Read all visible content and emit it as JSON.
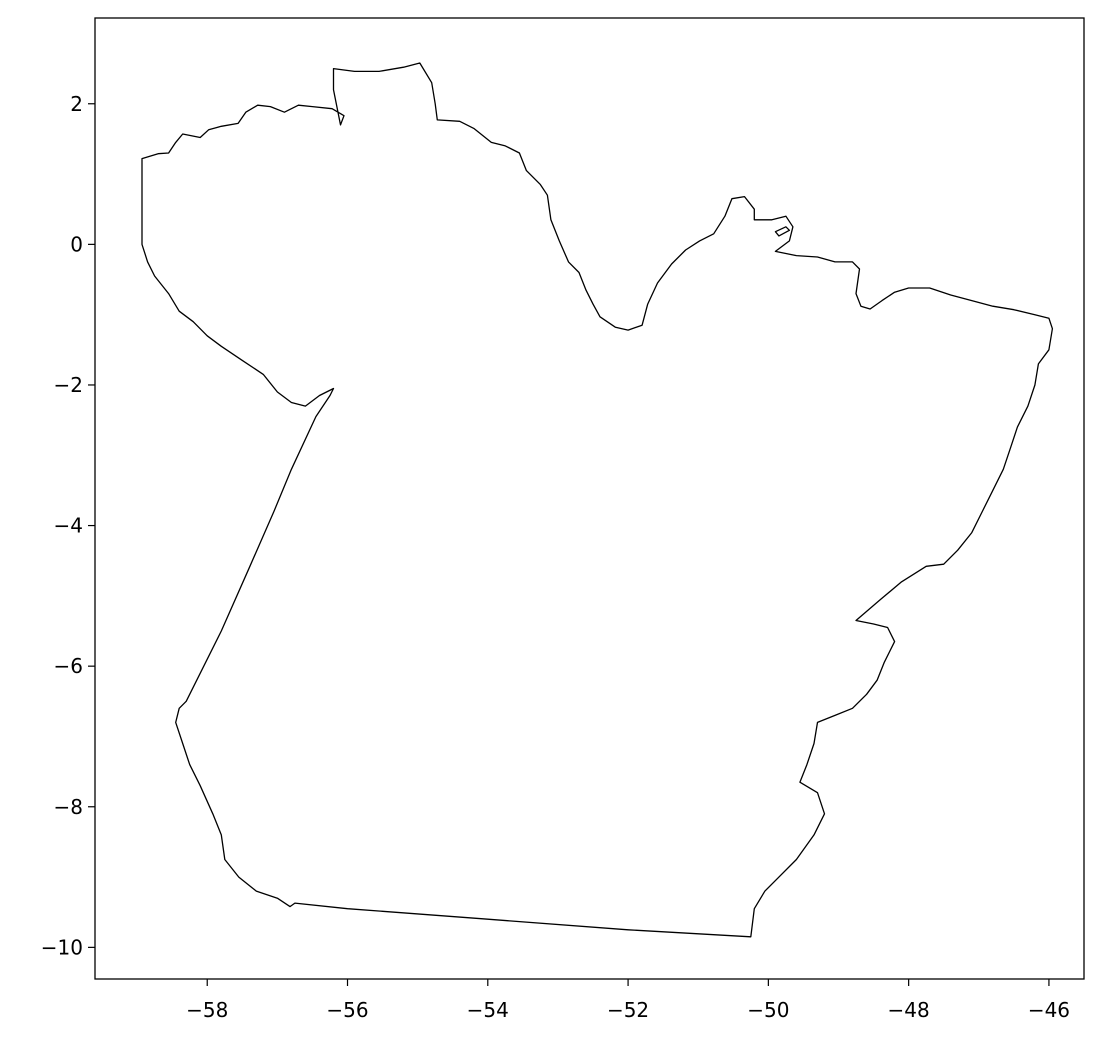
{
  "chart_data": {
    "type": "map",
    "title": "",
    "xlabel": "",
    "ylabel": "",
    "xlim": [
      -59.6,
      -45.5
    ],
    "ylim": [
      -10.45,
      3.22
    ],
    "x_ticks": [
      -58,
      -56,
      -54,
      -52,
      -50,
      -48,
      -46
    ],
    "y_ticks": [
      2,
      0,
      -2,
      -4,
      -6,
      -8,
      -10
    ],
    "grid": false,
    "colors": {
      "outline": "#000000",
      "fill": "#ffffff",
      "background": "#ffffff"
    },
    "outline_coords": [
      [
        -58.93,
        1.22
      ],
      [
        -58.7,
        1.29
      ],
      [
        -58.55,
        1.3
      ],
      [
        -58.45,
        1.45
      ],
      [
        -58.35,
        1.57
      ],
      [
        -58.1,
        1.52
      ],
      [
        -57.98,
        1.63
      ],
      [
        -57.8,
        1.68
      ],
      [
        -57.56,
        1.72
      ],
      [
        -57.45,
        1.88
      ],
      [
        -57.28,
        1.98
      ],
      [
        -57.1,
        1.96
      ],
      [
        -56.9,
        1.88
      ],
      [
        -56.7,
        1.98
      ],
      [
        -56.5,
        1.96
      ],
      [
        -56.22,
        1.93
      ],
      [
        -56.05,
        1.83
      ],
      [
        -56.1,
        1.7
      ],
      [
        -56.2,
        2.2
      ],
      [
        -56.2,
        2.5
      ],
      [
        -55.9,
        2.46
      ],
      [
        -55.55,
        2.46
      ],
      [
        -55.2,
        2.52
      ],
      [
        -54.97,
        2.58
      ],
      [
        -54.8,
        2.3
      ],
      [
        -54.75,
        2.0
      ],
      [
        -54.72,
        1.77
      ],
      [
        -54.4,
        1.75
      ],
      [
        -54.2,
        1.65
      ],
      [
        -53.95,
        1.45
      ],
      [
        -53.75,
        1.4
      ],
      [
        -53.55,
        1.3
      ],
      [
        -53.45,
        1.05
      ],
      [
        -53.25,
        0.85
      ],
      [
        -53.15,
        0.7
      ],
      [
        -53.1,
        0.35
      ],
      [
        -52.98,
        0.05
      ],
      [
        -52.85,
        -0.25
      ],
      [
        -52.7,
        -0.4
      ],
      [
        -52.6,
        -0.65
      ],
      [
        -52.5,
        -0.85
      ],
      [
        -52.4,
        -1.03
      ],
      [
        -52.18,
        -1.18
      ],
      [
        -52.0,
        -1.22
      ],
      [
        -51.8,
        -1.15
      ],
      [
        -51.72,
        -0.85
      ],
      [
        -51.58,
        -0.55
      ],
      [
        -51.38,
        -0.28
      ],
      [
        -51.18,
        -0.08
      ],
      [
        -50.98,
        0.05
      ],
      [
        -50.78,
        0.15
      ],
      [
        -50.62,
        0.4
      ],
      [
        -50.52,
        0.65
      ],
      [
        -50.34,
        0.68
      ],
      [
        -50.2,
        0.5
      ],
      [
        -50.2,
        0.35
      ],
      [
        -49.95,
        0.35
      ],
      [
        -49.75,
        0.4
      ],
      [
        -49.65,
        0.25
      ],
      [
        -49.7,
        0.05
      ],
      [
        -49.9,
        -0.1
      ],
      [
        -49.6,
        -0.16
      ],
      [
        -49.3,
        -0.18
      ],
      [
        -49.05,
        -0.25
      ],
      [
        -48.8,
        -0.25
      ],
      [
        -48.7,
        -0.35
      ],
      [
        -48.75,
        -0.7
      ],
      [
        -48.68,
        -0.88
      ],
      [
        -48.55,
        -0.92
      ],
      [
        -48.38,
        -0.8
      ],
      [
        -48.2,
        -0.68
      ],
      [
        -48.0,
        -0.62
      ],
      [
        -47.7,
        -0.62
      ],
      [
        -47.4,
        -0.72
      ],
      [
        -47.1,
        -0.8
      ],
      [
        -46.8,
        -0.88
      ],
      [
        -46.5,
        -0.93
      ],
      [
        -46.2,
        -1.0
      ],
      [
        -46.0,
        -1.05
      ],
      [
        -45.95,
        -1.2
      ],
      [
        -46.0,
        -1.5
      ],
      [
        -46.15,
        -1.7
      ],
      [
        -46.2,
        -2.0
      ],
      [
        -46.3,
        -2.3
      ],
      [
        -46.45,
        -2.6
      ],
      [
        -46.55,
        -2.9
      ],
      [
        -46.65,
        -3.2
      ],
      [
        -46.8,
        -3.5
      ],
      [
        -46.95,
        -3.8
      ],
      [
        -47.1,
        -4.1
      ],
      [
        -47.3,
        -4.35
      ],
      [
        -47.5,
        -4.55
      ],
      [
        -47.75,
        -4.58
      ],
      [
        -48.1,
        -4.8
      ],
      [
        -48.4,
        -5.05
      ],
      [
        -48.75,
        -5.35
      ],
      [
        -48.5,
        -5.4
      ],
      [
        -48.3,
        -5.45
      ],
      [
        -48.2,
        -5.65
      ],
      [
        -48.35,
        -5.95
      ],
      [
        -48.45,
        -6.2
      ],
      [
        -48.6,
        -6.4
      ],
      [
        -48.8,
        -6.6
      ],
      [
        -49.05,
        -6.7
      ],
      [
        -49.3,
        -6.8
      ],
      [
        -49.35,
        -7.1
      ],
      [
        -49.45,
        -7.4
      ],
      [
        -49.55,
        -7.65
      ],
      [
        -49.3,
        -7.8
      ],
      [
        -49.2,
        -8.1
      ],
      [
        -49.35,
        -8.4
      ],
      [
        -49.6,
        -8.75
      ],
      [
        -49.85,
        -9.0
      ],
      [
        -50.05,
        -9.2
      ],
      [
        -50.2,
        -9.45
      ],
      [
        -50.25,
        -9.85
      ],
      [
        -52.0,
        -9.75
      ],
      [
        -54.0,
        -9.6
      ],
      [
        -56.0,
        -9.45
      ],
      [
        -56.75,
        -9.37
      ],
      [
        -56.82,
        -9.42
      ],
      [
        -57.0,
        -9.3
      ],
      [
        -57.3,
        -9.2
      ],
      [
        -57.55,
        -9.0
      ],
      [
        -57.75,
        -8.75
      ],
      [
        -57.8,
        -8.4
      ],
      [
        -57.92,
        -8.1
      ],
      [
        -58.1,
        -7.7
      ],
      [
        -58.25,
        -7.4
      ],
      [
        -58.35,
        -7.1
      ],
      [
        -58.45,
        -6.8
      ],
      [
        -58.4,
        -6.6
      ],
      [
        -58.3,
        -6.5
      ],
      [
        -57.8,
        -5.5
      ],
      [
        -57.4,
        -4.6
      ],
      [
        -57.05,
        -3.8
      ],
      [
        -56.8,
        -3.2
      ],
      [
        -56.45,
        -2.45
      ],
      [
        -56.25,
        -2.15
      ],
      [
        -56.2,
        -2.05
      ],
      [
        -56.4,
        -2.15
      ],
      [
        -56.6,
        -2.3
      ],
      [
        -56.8,
        -2.25
      ],
      [
        -57.0,
        -2.1
      ],
      [
        -57.2,
        -1.85
      ],
      [
        -57.5,
        -1.65
      ],
      [
        -57.8,
        -1.45
      ],
      [
        -58.0,
        -1.3
      ],
      [
        -58.2,
        -1.1
      ],
      [
        -58.4,
        -0.95
      ],
      [
        -58.55,
        -0.7
      ],
      [
        -58.75,
        -0.45
      ],
      [
        -58.85,
        -0.25
      ],
      [
        -58.93,
        0.0
      ],
      [
        -58.93,
        1.22
      ]
    ],
    "islands": [
      [
        [
          -49.9,
          0.18
        ],
        [
          -49.75,
          0.25
        ],
        [
          -49.7,
          0.2
        ],
        [
          -49.85,
          0.12
        ],
        [
          -49.9,
          0.18
        ]
      ]
    ]
  }
}
